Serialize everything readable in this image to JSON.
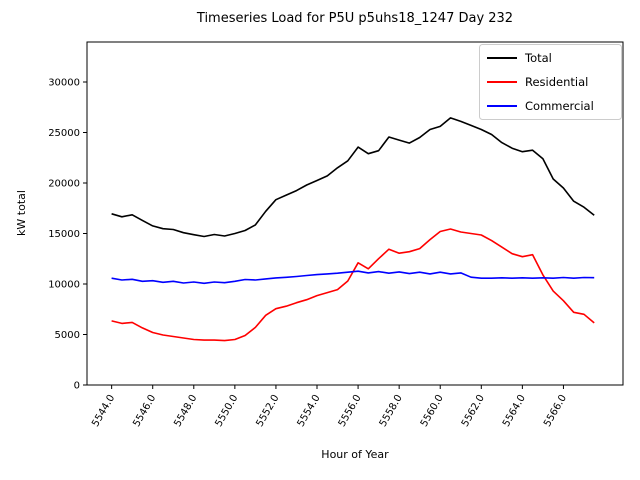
{
  "window": {
    "background": "#ffffff"
  },
  "chart_data": {
    "type": "line",
    "title": "Timeseries Load for P5U p5uhs18_1247  Day 232",
    "xlabel": "Hour of Year",
    "ylabel": "kW total",
    "grid": false,
    "legend_position": "upper right",
    "legend_border_color": "#cccccc",
    "axes_color": "#000000",
    "xlim": [
      5542.8,
      5568.9
    ],
    "ylim": [
      0,
      33960
    ],
    "xtick_values": [
      5544,
      5546,
      5548,
      5550,
      5552,
      5554,
      5556,
      5558,
      5560,
      5562,
      5564,
      5566
    ],
    "xtick_labels": [
      "5544.0",
      "5546.0",
      "5548.0",
      "5550.0",
      "5552.0",
      "5554.0",
      "5556.0",
      "5558.0",
      "5560.0",
      "5562.0",
      "5564.0",
      "5566.0"
    ],
    "ytick_values": [
      0,
      5000,
      10000,
      15000,
      20000,
      25000,
      30000
    ],
    "ytick_labels": [
      "0",
      "5000",
      "10000",
      "15000",
      "20000",
      "25000",
      "30000"
    ],
    "x": [
      5544.0,
      5544.5,
      5545.0,
      5545.5,
      5546.0,
      5546.5,
      5547.0,
      5547.5,
      5548.0,
      5548.5,
      5549.0,
      5549.5,
      5550.0,
      5550.5,
      5551.0,
      5551.5,
      5552.0,
      5552.5,
      5553.0,
      5553.5,
      5554.0,
      5554.5,
      5555.0,
      5555.5,
      5556.0,
      5556.5,
      5557.0,
      5557.5,
      5558.0,
      5558.5,
      5559.0,
      5559.5,
      5560.0,
      5560.5,
      5561.0,
      5561.5,
      5562.0,
      5562.5,
      5563.0,
      5563.5,
      5564.0,
      5564.5,
      5565.0,
      5565.5,
      5566.0,
      5566.5,
      5567.0,
      5567.5
    ],
    "series": [
      {
        "name": "Total",
        "color": "#000000",
        "values": [
          16950,
          16650,
          16850,
          16300,
          15750,
          15480,
          15400,
          15080,
          14880,
          14700,
          14900,
          14750,
          15000,
          15300,
          15850,
          17200,
          18350,
          18800,
          19250,
          19800,
          20250,
          20700,
          21500,
          22200,
          23550,
          22900,
          23200,
          24550,
          24250,
          23950,
          24500,
          25300,
          25600,
          26450,
          26100,
          25700,
          25300,
          24800,
          24000,
          23450,
          23100,
          23250,
          22400,
          20400,
          19500,
          18200,
          17600,
          16800
        ]
      },
      {
        "name": "Residential",
        "color": "#ff0000",
        "values": [
          6350,
          6100,
          6200,
          5650,
          5200,
          4950,
          4800,
          4650,
          4500,
          4450,
          4450,
          4400,
          4500,
          4900,
          5700,
          6900,
          7550,
          7800,
          8150,
          8450,
          8850,
          9150,
          9450,
          10300,
          12100,
          11500,
          12500,
          13450,
          13050,
          13200,
          13500,
          14400,
          15200,
          15450,
          15150,
          15000,
          14850,
          14300,
          13650,
          13000,
          12700,
          12900,
          10900,
          9300,
          8350,
          7200,
          7000,
          6150
        ]
      },
      {
        "name": "Commercial",
        "color": "#0000ff",
        "values": [
          10570,
          10400,
          10470,
          10270,
          10330,
          10170,
          10270,
          10100,
          10200,
          10070,
          10200,
          10130,
          10270,
          10450,
          10400,
          10500,
          10600,
          10660,
          10740,
          10840,
          10930,
          11000,
          11070,
          11170,
          11270,
          11100,
          11230,
          11070,
          11200,
          11030,
          11170,
          11000,
          11170,
          11000,
          11100,
          10670,
          10570,
          10570,
          10610,
          10570,
          10610,
          10570,
          10610,
          10570,
          10640,
          10570,
          10640,
          10620
        ]
      }
    ]
  }
}
